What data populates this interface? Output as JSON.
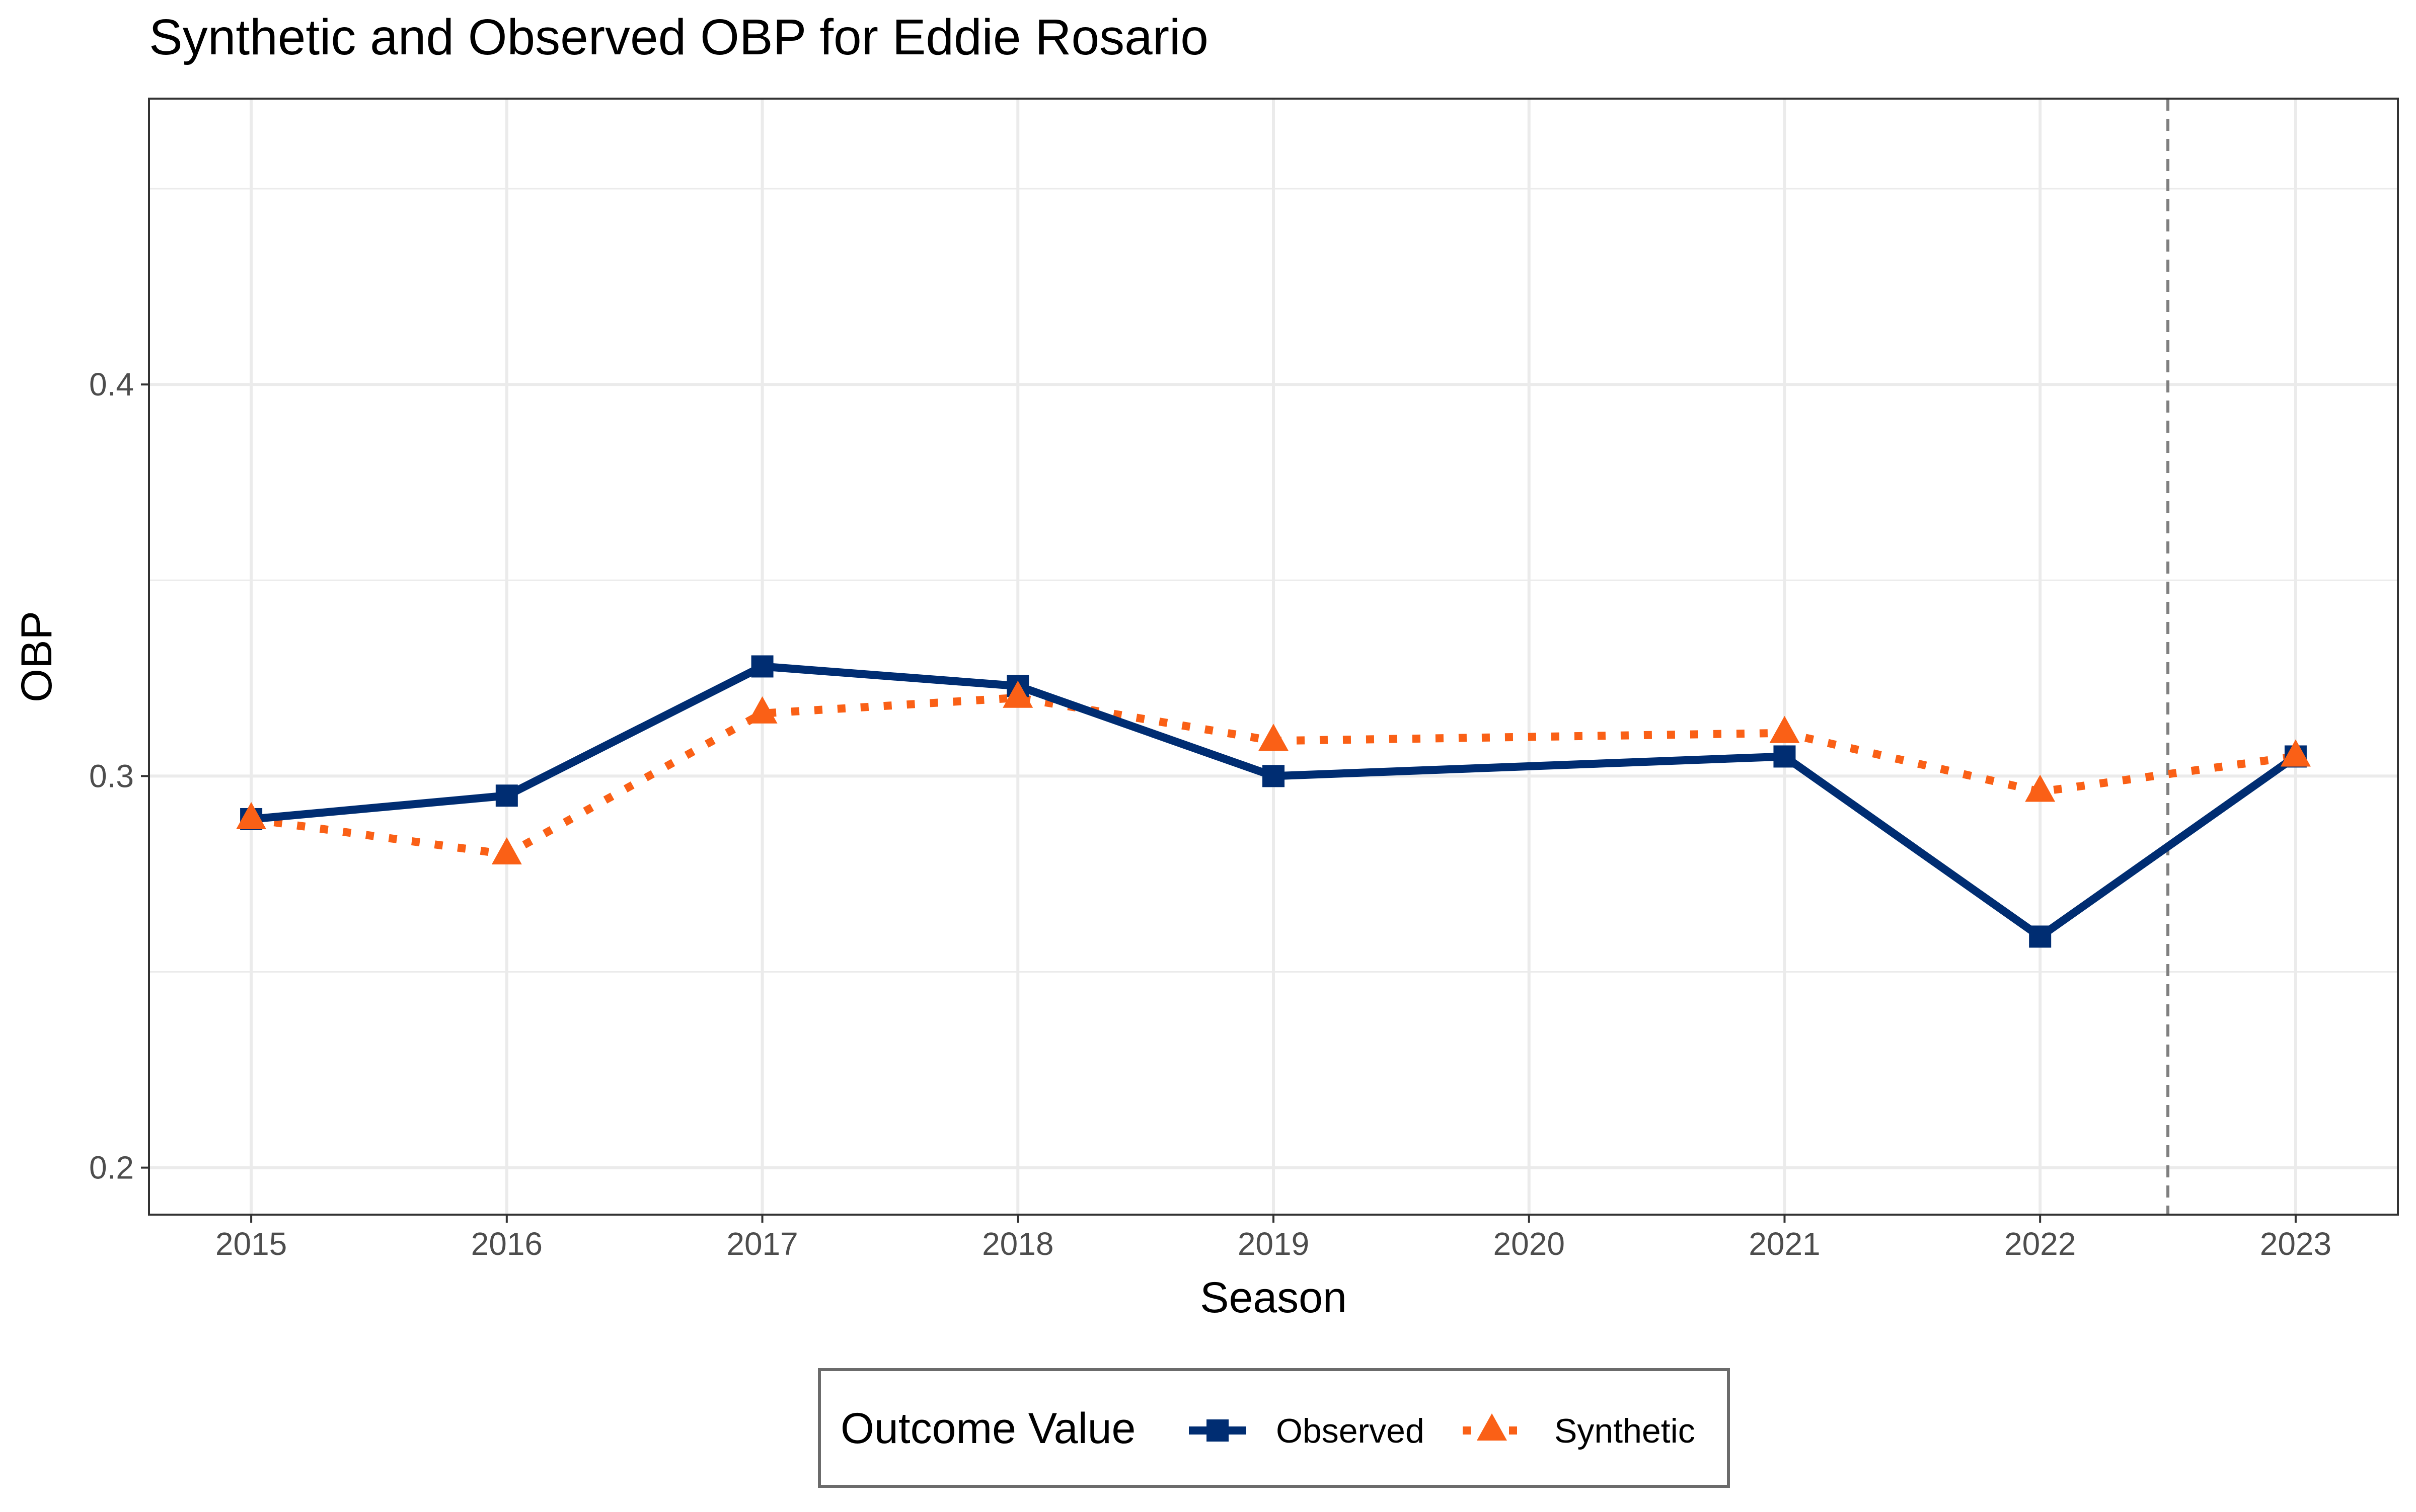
{
  "chart_data": {
    "type": "line",
    "title": "Synthetic and Observed OBP for Eddie Rosario",
    "xlabel": "Season",
    "ylabel": "OBP",
    "x": [
      2015,
      2016,
      2017,
      2018,
      2019,
      2020,
      2021,
      2022,
      2023
    ],
    "x_tick_labels": [
      "2015",
      "2016",
      "2017",
      "2018",
      "2019",
      "2020",
      "2021",
      "2022",
      "2023"
    ],
    "y_tick_labels": [
      "0.2",
      "0.3",
      "0.4"
    ],
    "y_ticks": [
      0.2,
      0.3,
      0.4
    ],
    "y_minor_ticks": [
      0.25,
      0.35,
      0.45
    ],
    "xlim": [
      2014.6,
      2023.4
    ],
    "ylim": [
      0.188,
      0.473
    ],
    "grid": true,
    "treatment_line_x": 2022.5,
    "legend": {
      "title": "Outcome Value",
      "placement": "bottom"
    },
    "series": [
      {
        "name": "Observed",
        "color": "#002D72",
        "line_style": "solid",
        "marker": "square",
        "x": [
          2015,
          2016,
          2017,
          2018,
          2019,
          2021,
          2022,
          2023
        ],
        "values": [
          0.289,
          0.295,
          0.328,
          0.323,
          0.3,
          0.305,
          0.259,
          0.305
        ]
      },
      {
        "name": "Synthetic",
        "color": "#FA6016",
        "line_style": "dotted",
        "marker": "triangle",
        "x": [
          2015,
          2016,
          2017,
          2018,
          2019,
          2021,
          2022,
          2023
        ],
        "values": [
          0.289,
          0.28,
          0.316,
          0.32,
          0.309,
          0.311,
          0.296,
          0.305
        ]
      }
    ]
  }
}
